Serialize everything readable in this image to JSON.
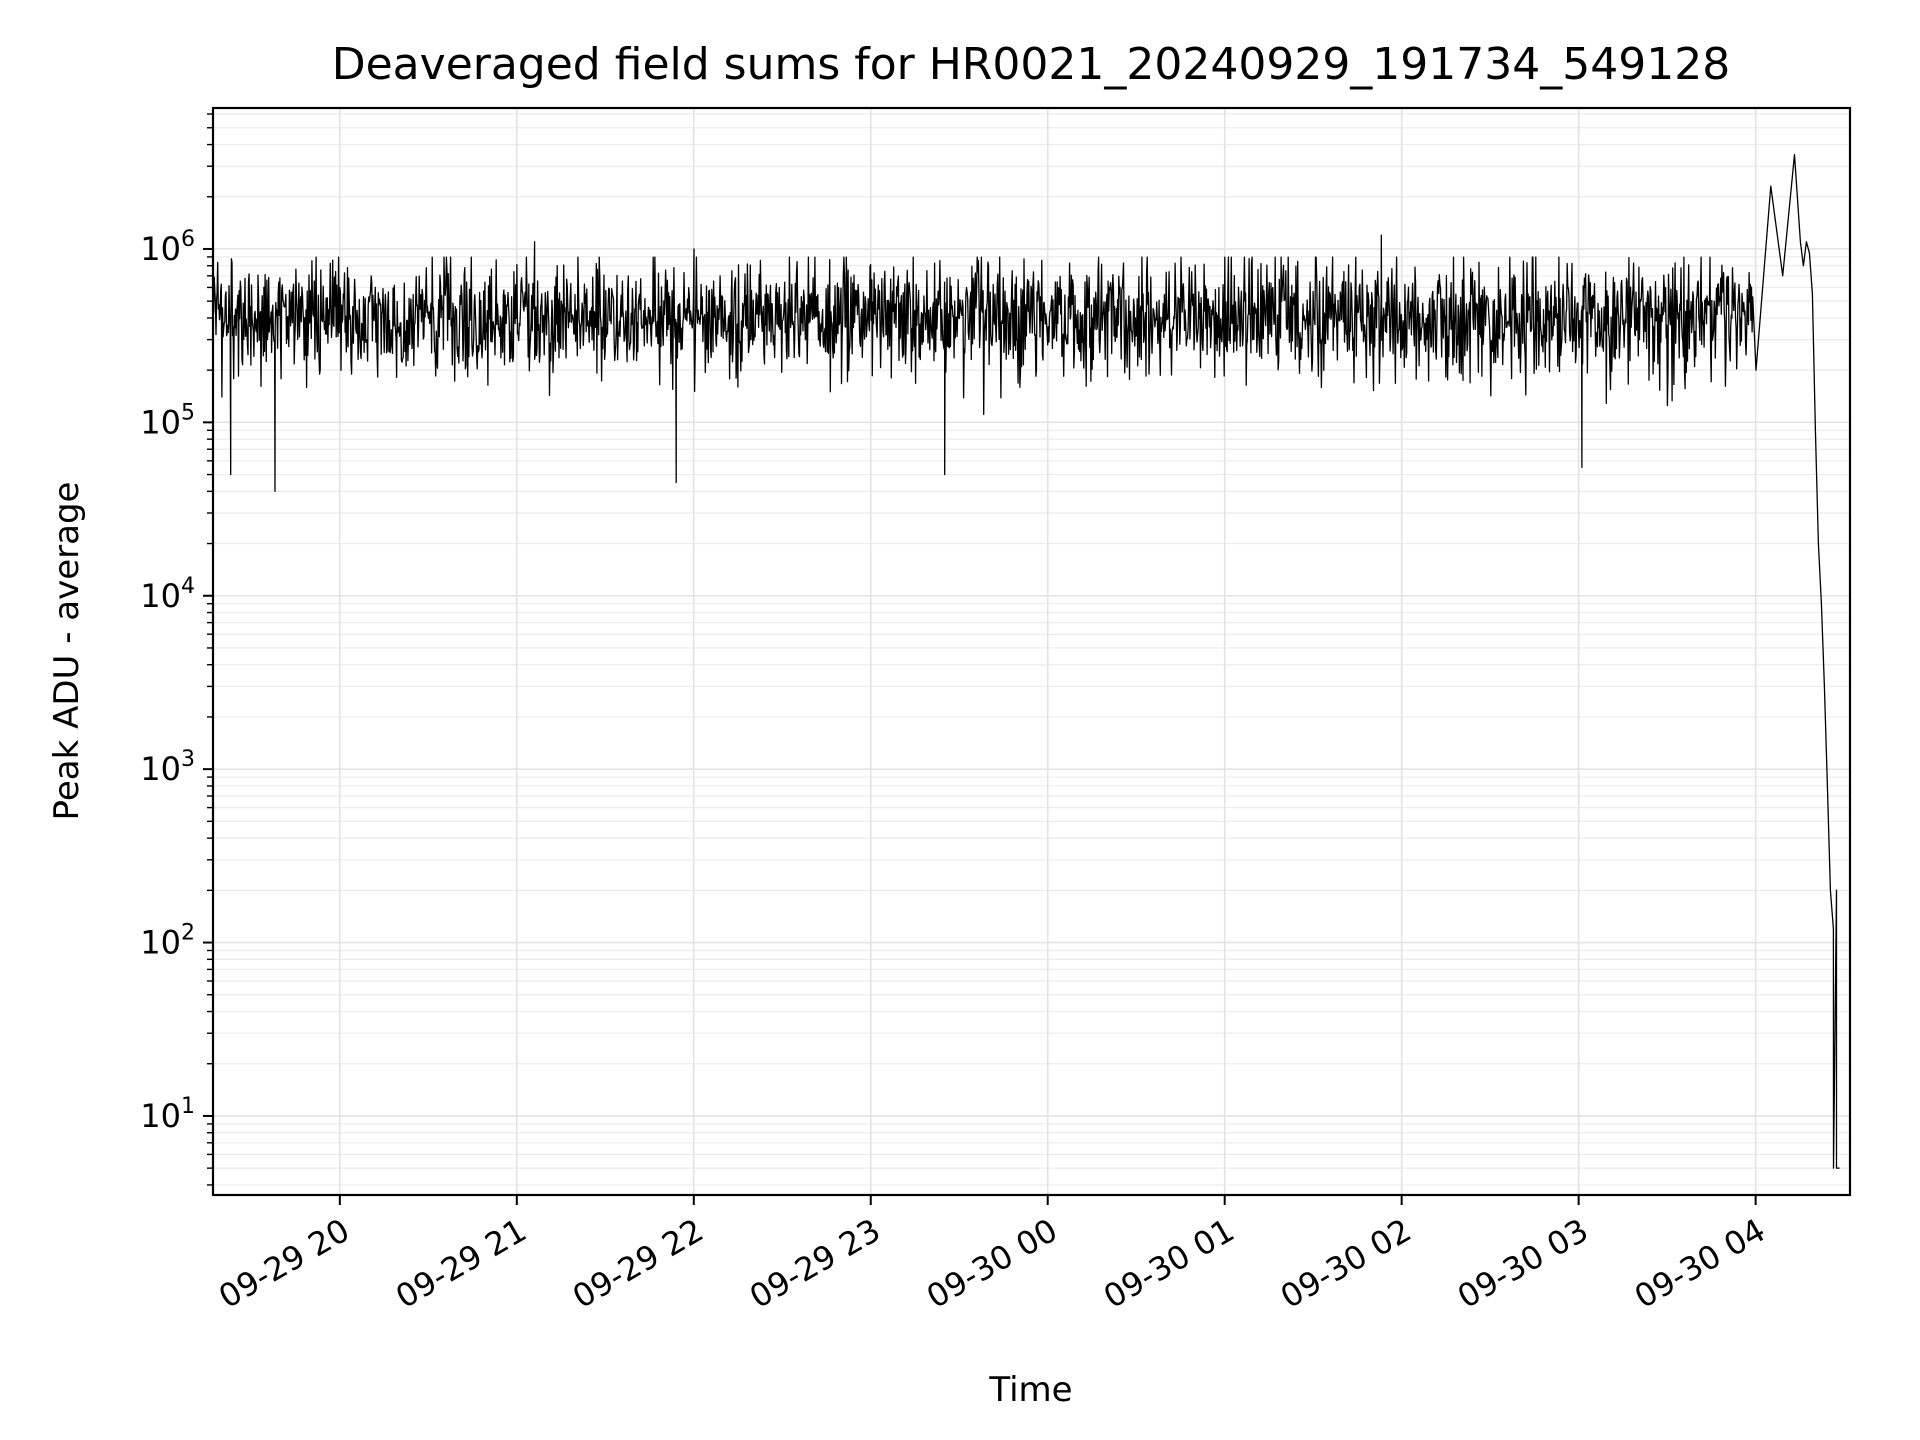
{
  "chart_data": {
    "type": "line",
    "title": "Deaveraged field sums for HR0021_20240929_191734_549128",
    "xlabel": "Time",
    "ylabel": "Peak ADU - average",
    "xscale": "time",
    "yscale": "log",
    "xlim": [
      "2024-09-29 19:17",
      "2024-09-30 04:32"
    ],
    "ylim": [
      3.5,
      6500000
    ],
    "x_ticks": [
      "2024-09-29 20:00",
      "2024-09-29 21:00",
      "2024-09-29 22:00",
      "2024-09-29 23:00",
      "2024-09-30 00:00",
      "2024-09-30 01:00",
      "2024-09-30 02:00",
      "2024-09-30 03:00",
      "2024-09-30 04:00"
    ],
    "x_tick_labels": [
      "09-29 20",
      "09-29 21",
      "09-29 22",
      "09-29 23",
      "09-30 00",
      "09-30 01",
      "09-30 02",
      "09-30 03",
      "09-30 04"
    ],
    "y_ticks": [
      10,
      100,
      1000,
      10000,
      100000,
      1000000
    ],
    "y_tick_labels": [
      {
        "base": "10",
        "exp": "1"
      },
      {
        "base": "10",
        "exp": "2"
      },
      {
        "base": "10",
        "exp": "3"
      },
      {
        "base": "10",
        "exp": "4"
      },
      {
        "base": "10",
        "exp": "5"
      },
      {
        "base": "10",
        "exp": "6"
      }
    ],
    "grid": true,
    "series": [
      {
        "color": "#000000",
        "noise_band": {
          "x_start": "2024-09-29 19:17",
          "x_end": "2024-09-30 03:59",
          "typical": 400000,
          "low": 100000,
          "high": 800000
        },
        "x": [
          "2024-09-29 19:23",
          "2024-09-29 19:38",
          "2024-09-29 21:06",
          "2024-09-29 21:54",
          "2024-09-29 22:00",
          "2024-09-29 23:25",
          "2024-09-30 01:53",
          "2024-09-30 03:01",
          "2024-09-30 04:00",
          "2024-09-30 04:05",
          "2024-09-30 04:09",
          "2024-09-30 04:13",
          "2024-09-30 04:15",
          "2024-09-30 04:16",
          "2024-09-30 04:17",
          "2024-09-30 04:18",
          "2024-09-30 04:19",
          "2024-09-30 04:20",
          "2024-09-30 04:21",
          "2024-09-30 04:22",
          "2024-09-30 04:23",
          "2024-09-30 04:24",
          "2024-09-30 04:25",
          "2024-09-30 04:26",
          "2024-09-30 04:26",
          "2024-09-30 04:27",
          "2024-09-30 04:27",
          "2024-09-30 04:28",
          "2024-09-30 04:28"
        ],
        "y": [
          50000,
          40000,
          1100000,
          45000,
          1000000,
          50000,
          1200000,
          55000,
          200000,
          2300000,
          700000,
          3500000,
          1100000,
          800000,
          1100000,
          950000,
          550000,
          90000,
          20000,
          9000,
          3000,
          800,
          200,
          120,
          5,
          200,
          5,
          5,
          5
        ]
      }
    ]
  }
}
